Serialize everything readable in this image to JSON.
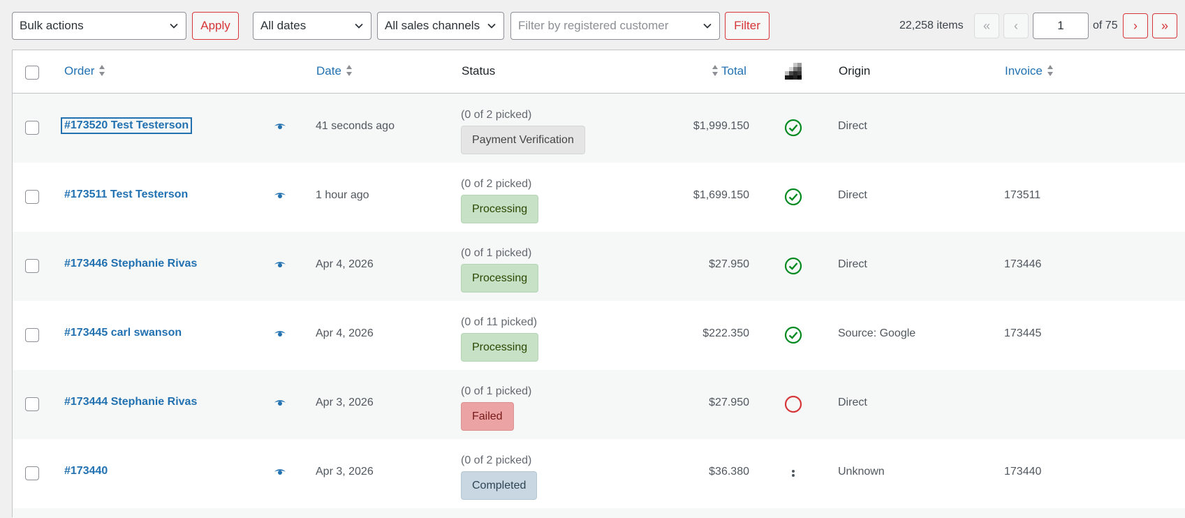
{
  "toolbar": {
    "bulk_actions": "Bulk actions",
    "apply_label": "Apply",
    "dates": "All dates",
    "channels": "All sales channels",
    "customer_placeholder": "Filter by registered customer",
    "filter_label": "Filter",
    "items_count": "22,258 items",
    "first_page": "«",
    "prev_page": "‹",
    "current_page": "1",
    "of_pages": "of 75",
    "next_page": "›",
    "last_page": "»"
  },
  "columns": {
    "order": "Order",
    "date": "Date",
    "status": "Status",
    "total": "Total",
    "origin": "Origin",
    "invoice": "Invoice"
  },
  "rows": [
    {
      "order": "#173520 Test Testerson",
      "date": "41 seconds ago",
      "picked": "(0 of 2 picked)",
      "status": "Payment Verification",
      "total": "$1,999.150",
      "origin": "Direct",
      "invoice": "",
      "sync": "check"
    },
    {
      "order": "#173511 Test Testerson",
      "date": "1 hour ago",
      "picked": "(0 of 2 picked)",
      "status": "Processing",
      "total": "$1,699.150",
      "origin": "Direct",
      "invoice": "173511",
      "sync": "check"
    },
    {
      "order": "#173446 Stephanie Rivas",
      "date": "Apr 4, 2026",
      "picked": "(0 of 1 picked)",
      "status": "Processing",
      "total": "$27.950",
      "origin": "Direct",
      "invoice": "173446",
      "sync": "check"
    },
    {
      "order": "#173445 carl swanson",
      "date": "Apr 4, 2026",
      "picked": "(0 of 11 picked)",
      "status": "Processing",
      "total": "$222.350",
      "origin": "Source: Google",
      "invoice": "173445",
      "sync": "check"
    },
    {
      "order": "#173444 Stephanie Rivas",
      "date": "Apr 3, 2026",
      "picked": "(0 of 1 picked)",
      "status": "Failed",
      "total": "$27.950",
      "origin": "Direct",
      "invoice": "",
      "sync": "empty-circle"
    },
    {
      "order": "#173440",
      "date": "Apr 3, 2026",
      "picked": "(0 of 2 picked)",
      "status": "Completed",
      "total": "$36.380",
      "origin": "Unknown",
      "invoice": "173440",
      "sync": "dots"
    }
  ],
  "colors": {
    "accent": "#2271b1",
    "danger": "#d63638",
    "check": "#008a20",
    "failed_circle": "#d63638"
  }
}
